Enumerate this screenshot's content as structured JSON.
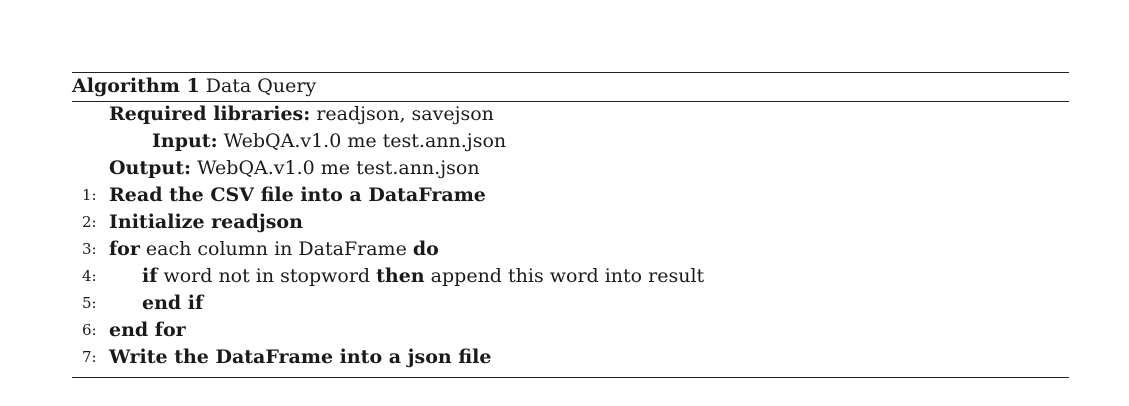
{
  "algorithm": {
    "caption_label": "Algorithm 1",
    "caption_title": "Data Query",
    "required_label": "Required libraries:",
    "required_value": "readjson, savejson",
    "input_label": "Input:",
    "input_value": "WebQA.v1.0 me test.ann.json",
    "output_label": "Output:",
    "output_value": "WebQA.v1.0 me test.ann.json",
    "steps": [
      {
        "num": "1:",
        "text": "Read the CSV file into a DataFrame"
      },
      {
        "num": "2:",
        "text": "Initialize readjson"
      },
      {
        "num": "3:",
        "kw1": "for",
        "mid": "each column in DataFrame",
        "kw2": "do"
      },
      {
        "num": "4:",
        "kw1": "if",
        "mid": "word not in stopword",
        "kw2": "then",
        "tail": "append this word into result"
      },
      {
        "num": "5:",
        "text": "end if"
      },
      {
        "num": "6:",
        "text": "end for"
      },
      {
        "num": "7:",
        "text": "Write the DataFrame into a json file"
      }
    ]
  }
}
